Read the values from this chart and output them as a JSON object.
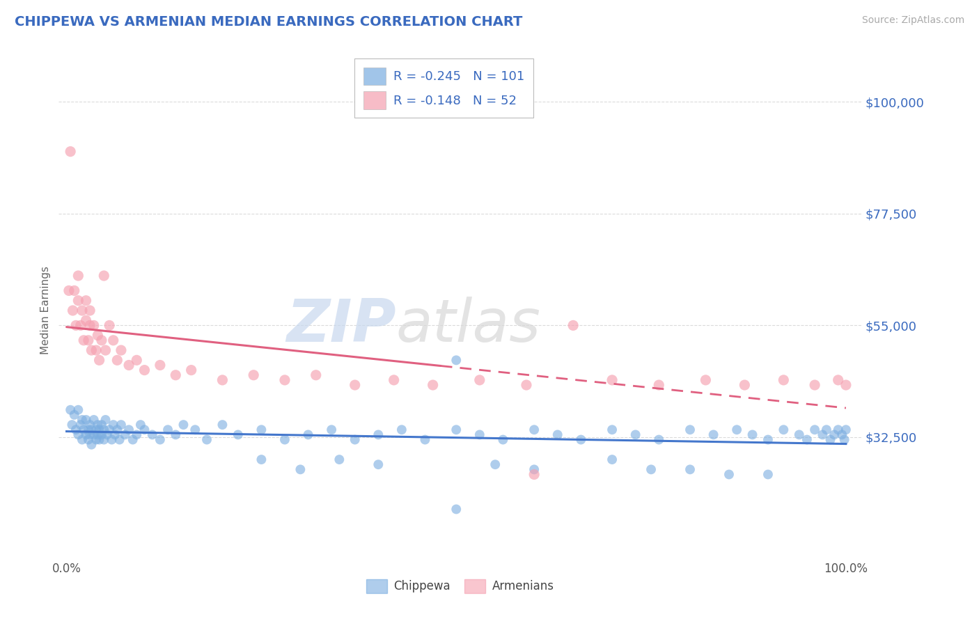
{
  "title": "CHIPPEWA VS ARMENIAN MEDIAN EARNINGS CORRELATION CHART",
  "title_color": "#3a6abf",
  "source_text": "Source: ZipAtlas.com",
  "source_color": "#aaaaaa",
  "ylabel": "Median Earnings",
  "ylabel_color": "#666666",
  "xlim": [
    -0.01,
    1.02
  ],
  "ylim": [
    8000,
    108000
  ],
  "yticks": [
    32500,
    55000,
    77500,
    100000
  ],
  "ytick_labels": [
    "$32,500",
    "$55,000",
    "$77,500",
    "$100,000"
  ],
  "xtick_labels": [
    "0.0%",
    "100.0%"
  ],
  "background_color": "#ffffff",
  "grid_color": "#cccccc",
  "watermark_zip": "ZIP",
  "watermark_atlas": "atlas",
  "chippewa_color": "#7aade0",
  "armenian_color": "#f5a0b0",
  "chippewa_line_color": "#4477cc",
  "armenian_line_color": "#e06080",
  "chippewa_R": -0.245,
  "chippewa_N": 101,
  "armenian_R": -0.148,
  "armenian_N": 52,
  "legend_label_chippewa": "Chippewa",
  "legend_label_armenian": "Armenians",
  "chippewa_x": [
    0.005,
    0.007,
    0.01,
    0.012,
    0.015,
    0.015,
    0.018,
    0.02,
    0.02,
    0.022,
    0.025,
    0.025,
    0.028,
    0.028,
    0.03,
    0.03,
    0.032,
    0.032,
    0.035,
    0.035,
    0.038,
    0.038,
    0.04,
    0.04,
    0.042,
    0.042,
    0.045,
    0.045,
    0.048,
    0.048,
    0.05,
    0.052,
    0.055,
    0.058,
    0.06,
    0.062,
    0.065,
    0.068,
    0.07,
    0.075,
    0.08,
    0.085,
    0.09,
    0.095,
    0.1,
    0.11,
    0.12,
    0.13,
    0.14,
    0.15,
    0.165,
    0.18,
    0.2,
    0.22,
    0.25,
    0.28,
    0.31,
    0.34,
    0.37,
    0.4,
    0.43,
    0.46,
    0.5,
    0.53,
    0.56,
    0.6,
    0.63,
    0.66,
    0.7,
    0.73,
    0.76,
    0.8,
    0.83,
    0.86,
    0.88,
    0.9,
    0.92,
    0.94,
    0.95,
    0.96,
    0.97,
    0.975,
    0.98,
    0.985,
    0.99,
    0.995,
    0.998,
    1.0,
    0.5,
    0.5,
    0.25,
    0.3,
    0.4,
    0.6,
    0.7,
    0.8,
    0.9,
    0.35,
    0.55,
    0.75,
    0.85
  ],
  "chippewa_y": [
    38000,
    35000,
    37000,
    34000,
    38000,
    33000,
    35000,
    36000,
    32000,
    34000,
    33000,
    36000,
    34000,
    32000,
    35000,
    33000,
    34000,
    31000,
    33000,
    36000,
    34000,
    32000,
    33000,
    35000,
    32000,
    34000,
    33000,
    35000,
    32000,
    34000,
    36000,
    33000,
    34000,
    32000,
    35000,
    33000,
    34000,
    32000,
    35000,
    33000,
    34000,
    32000,
    33000,
    35000,
    34000,
    33000,
    32000,
    34000,
    33000,
    35000,
    34000,
    32000,
    35000,
    33000,
    34000,
    32000,
    33000,
    34000,
    32000,
    33000,
    34000,
    32000,
    34000,
    33000,
    32000,
    34000,
    33000,
    32000,
    34000,
    33000,
    32000,
    34000,
    33000,
    34000,
    33000,
    32000,
    34000,
    33000,
    32000,
    34000,
    33000,
    34000,
    32000,
    33000,
    34000,
    33000,
    32000,
    34000,
    18000,
    48000,
    28000,
    26000,
    27000,
    26000,
    28000,
    26000,
    25000,
    28000,
    27000,
    26000,
    25000
  ],
  "armenian_x": [
    0.005,
    0.008,
    0.01,
    0.012,
    0.015,
    0.015,
    0.018,
    0.02,
    0.022,
    0.025,
    0.025,
    0.028,
    0.03,
    0.03,
    0.032,
    0.035,
    0.038,
    0.04,
    0.042,
    0.045,
    0.048,
    0.05,
    0.055,
    0.06,
    0.065,
    0.07,
    0.08,
    0.09,
    0.1,
    0.12,
    0.14,
    0.16,
    0.2,
    0.24,
    0.28,
    0.32,
    0.37,
    0.42,
    0.47,
    0.53,
    0.59,
    0.65,
    0.7,
    0.76,
    0.82,
    0.87,
    0.92,
    0.96,
    0.99,
    1.0,
    0.003,
    0.6
  ],
  "armenian_y": [
    90000,
    58000,
    62000,
    55000,
    60000,
    65000,
    55000,
    58000,
    52000,
    56000,
    60000,
    52000,
    55000,
    58000,
    50000,
    55000,
    50000,
    53000,
    48000,
    52000,
    65000,
    50000,
    55000,
    52000,
    48000,
    50000,
    47000,
    48000,
    46000,
    47000,
    45000,
    46000,
    44000,
    45000,
    44000,
    45000,
    43000,
    44000,
    43000,
    44000,
    43000,
    55000,
    44000,
    43000,
    44000,
    43000,
    44000,
    43000,
    44000,
    43000,
    62000,
    25000
  ]
}
